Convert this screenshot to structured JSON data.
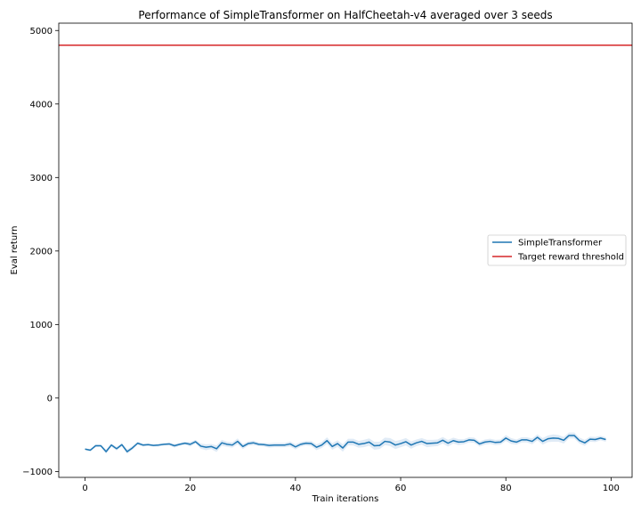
{
  "chart_data": {
    "type": "line",
    "title": "Performance of SimpleTransformer on HalfCheetah-v4 averaged over 3 seeds",
    "xlabel": "Train iterations",
    "ylabel": "Eval return",
    "xlim": [
      -5,
      104
    ],
    "ylim": [
      -1080,
      5100
    ],
    "xticks": [
      0,
      20,
      40,
      60,
      80,
      100
    ],
    "yticks": [
      -1000,
      0,
      1000,
      2000,
      3000,
      4000,
      5000
    ],
    "grid": false,
    "legend_position": "center-right",
    "series": [
      {
        "name": "SimpleTransformer",
        "color": "#1f77b4",
        "band_color": "#c6dbef",
        "x": [
          0,
          1,
          2,
          3,
          4,
          5,
          6,
          7,
          8,
          9,
          10,
          11,
          12,
          13,
          14,
          15,
          16,
          17,
          18,
          19,
          20,
          21,
          22,
          23,
          24,
          25,
          26,
          27,
          28,
          29,
          30,
          31,
          32,
          33,
          34,
          35,
          36,
          37,
          38,
          39,
          40,
          41,
          42,
          43,
          44,
          45,
          46,
          47,
          48,
          49,
          50,
          51,
          52,
          53,
          54,
          55,
          56,
          57,
          58,
          59,
          60,
          61,
          62,
          63,
          64,
          65,
          66,
          67,
          68,
          69,
          70,
          71,
          72,
          73,
          74,
          75,
          76,
          77,
          78,
          79,
          80,
          81,
          82,
          83,
          84,
          85,
          86,
          87,
          88,
          89,
          90,
          91,
          92,
          93,
          94,
          95,
          96,
          97,
          98,
          99
        ],
        "values": [
          -695,
          -710,
          -650,
          -650,
          -730,
          -640,
          -690,
          -635,
          -730,
          -680,
          -615,
          -640,
          -635,
          -645,
          -640,
          -630,
          -625,
          -650,
          -630,
          -615,
          -630,
          -595,
          -655,
          -670,
          -660,
          -690,
          -610,
          -630,
          -640,
          -590,
          -660,
          -620,
          -610,
          -630,
          -635,
          -645,
          -640,
          -640,
          -640,
          -625,
          -665,
          -630,
          -615,
          -620,
          -670,
          -640,
          -580,
          -660,
          -620,
          -680,
          -600,
          -600,
          -630,
          -620,
          -600,
          -650,
          -645,
          -590,
          -600,
          -640,
          -620,
          -595,
          -640,
          -610,
          -590,
          -620,
          -615,
          -610,
          -575,
          -615,
          -580,
          -600,
          -595,
          -570,
          -575,
          -625,
          -600,
          -590,
          -605,
          -600,
          -545,
          -585,
          -600,
          -570,
          -570,
          -590,
          -535,
          -590,
          -555,
          -545,
          -550,
          -575,
          -510,
          -510,
          -580,
          -610,
          -560,
          -565,
          -545,
          -565
        ],
        "band": [
          10,
          15,
          20,
          15,
          30,
          20,
          25,
          20,
          30,
          25,
          20,
          20,
          15,
          15,
          20,
          15,
          20,
          25,
          20,
          20,
          30,
          25,
          35,
          40,
          35,
          45,
          40,
          35,
          35,
          40,
          35,
          30,
          30,
          25,
          25,
          30,
          30,
          30,
          30,
          35,
          35,
          30,
          30,
          35,
          40,
          40,
          45,
          45,
          45,
          50,
          45,
          45,
          45,
          50,
          50,
          55,
          50,
          50,
          55,
          55,
          50,
          50,
          50,
          45,
          45,
          50,
          45,
          45,
          45,
          45,
          40,
          40,
          35,
          35,
          35,
          35,
          35,
          35,
          35,
          35,
          40,
          40,
          35,
          35,
          35,
          40,
          40,
          45,
          45,
          50,
          45,
          45,
          40,
          40,
          40,
          40,
          35,
          35,
          30,
          30
        ]
      },
      {
        "name": "Target reward threshold",
        "color": "#d62728",
        "type": "hline",
        "value": 4800
      }
    ]
  }
}
